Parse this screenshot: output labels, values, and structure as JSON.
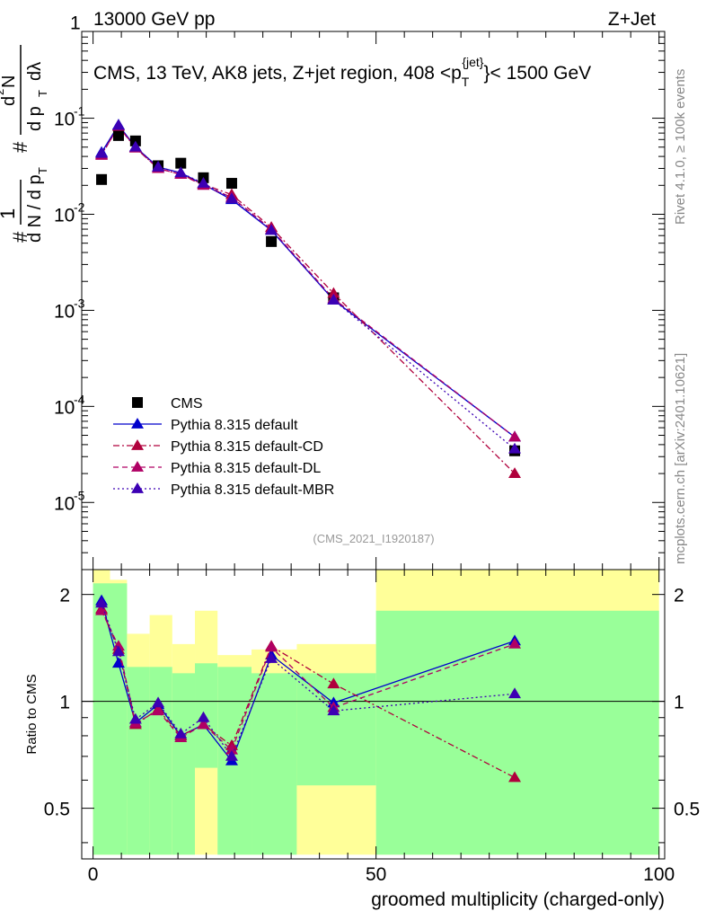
{
  "header": {
    "left": "13000 GeV pp",
    "right": "Z+Jet"
  },
  "side_labels": {
    "rivet": "Rivet 4.1.0, ≥ 100k events",
    "mcplots": "mcplots.cern.ch [arXiv:2401.10621]"
  },
  "title_parts": {
    "main": "CMS, 13 TeV, AK8 jets, Z+jet region, 408 <p",
    "sub": "T",
    "sup": "{jet}",
    "tail": "}< 1500 GeV"
  },
  "ylabel_parts": {
    "hash": "#",
    "one": "1",
    "dN": "d N / d p",
    "T": "T",
    "hash2": "#",
    "d2N": "d",
    "two": "2",
    "N": "N",
    "dpT": "d p",
    "dlambda": "dλ"
  },
  "watermark": "(CMS_2021_I1920187)",
  "colors": {
    "cms": "#000000",
    "default": "#0000cc",
    "cd": "#b0003c",
    "dl": "#b00064",
    "mbr": "#3c00b4",
    "band_inner": "#99ff99",
    "band_outer": "#ffff99"
  },
  "chart_data": [
    {
      "type": "scatter",
      "panel": "main",
      "yscale": "log",
      "xlim": [
        -2,
        101
      ],
      "ylim": [
        2e-06,
        0.8
      ],
      "ytick_labels": [
        {
          "mant": "10",
          "exp": "-5",
          "value": 1e-05
        },
        {
          "mant": "10",
          "exp": "-4",
          "value": 0.0001
        },
        {
          "mant": "10",
          "exp": "-3",
          "value": 0.001
        },
        {
          "mant": "10",
          "exp": "-2",
          "value": 0.01
        },
        {
          "mant": "10",
          "exp": "-1",
          "value": 0.1
        },
        {
          "mant": "1",
          "exp": "",
          "value": 1
        }
      ],
      "x": [
        1.5,
        4.5,
        7.5,
        11.5,
        15.5,
        19.5,
        24.5,
        31.5,
        42.5,
        74.5
      ],
      "series": [
        {
          "name": "CMS",
          "key": "cms",
          "marker": "square",
          "values": [
            0.023,
            0.066,
            0.058,
            0.032,
            0.034,
            0.024,
            0.021,
            0.0052,
            0.00135,
            3.45e-05
          ]
        },
        {
          "name": "Pythia 8.315 default",
          "key": "default",
          "marker": "triangle",
          "line": "solid",
          "values": [
            0.044,
            0.085,
            0.05,
            0.031,
            0.027,
            0.0205,
            0.0142,
            0.0068,
            0.00128,
            4.8e-05
          ]
        },
        {
          "name": "Pythia 8.315 default-CD",
          "key": "cd",
          "marker": "triangle",
          "line": "dashdot",
          "values": [
            0.042,
            0.082,
            0.049,
            0.03,
            0.026,
            0.0205,
            0.016,
            0.0073,
            0.0015,
            2e-05
          ]
        },
        {
          "name": "Pythia 8.315 default-DL",
          "key": "dl",
          "marker": "triangle",
          "line": "dash",
          "values": [
            0.041,
            0.083,
            0.049,
            0.03,
            0.026,
            0.02,
            0.015,
            0.007,
            0.00132,
            4.8e-05
          ]
        },
        {
          "name": "Pythia 8.315 default-MBR",
          "key": "mbr",
          "marker": "triangle",
          "line": "dot",
          "values": [
            0.043,
            0.084,
            0.05,
            0.031,
            0.027,
            0.021,
            0.0145,
            0.0068,
            0.00128,
            3.6e-05
          ]
        }
      ]
    },
    {
      "type": "line",
      "panel": "ratio",
      "yscale": "log",
      "ylabel": "Ratio to CMS",
      "xlabel": "groomed multiplicity (charged-only)",
      "xlim": [
        -2,
        101
      ],
      "ylim": [
        0.36,
        2.35
      ],
      "xticks": [
        0,
        50,
        100
      ],
      "xtick_labels": [
        "0",
        "50",
        "100"
      ],
      "yticks": [
        0.5,
        1,
        2
      ],
      "ytick_labels": [
        "0.5",
        "1",
        "2"
      ],
      "bin_edges": [
        0,
        3,
        6,
        10,
        14,
        18,
        22,
        28,
        36,
        50,
        100
      ],
      "band_inner": [
        [
          0.37,
          2.15
        ],
        [
          0.37,
          2.15
        ],
        [
          0.37,
          1.25
        ],
        [
          0.37,
          1.25
        ],
        [
          0.37,
          1.2
        ],
        [
          0.65,
          1.28
        ],
        [
          0.37,
          1.25
        ],
        [
          0.37,
          1.2
        ],
        [
          0.58,
          1.2
        ],
        [
          0.37,
          1.8
        ]
      ],
      "band_outer": [
        [
          0.37,
          2.35
        ],
        [
          0.37,
          2.2
        ],
        [
          0.37,
          1.55
        ],
        [
          0.37,
          1.75
        ],
        [
          0.37,
          1.45
        ],
        [
          0.37,
          1.8
        ],
        [
          0.37,
          1.35
        ],
        [
          0.37,
          1.4
        ],
        [
          0.37,
          1.45
        ],
        [
          0.37,
          2.35
        ]
      ],
      "x": [
        1.5,
        4.5,
        7.5,
        11.5,
        15.5,
        19.5,
        24.5,
        31.5,
        42.5,
        74.5
      ],
      "series": [
        {
          "name": "Pythia 8.315 default",
          "key": "default",
          "line": "solid",
          "values": [
            1.92,
            1.28,
            0.87,
            0.98,
            0.8,
            0.86,
            0.68,
            1.35,
            0.99,
            1.48
          ]
        },
        {
          "name": "Pythia 8.315 default-CD",
          "key": "cd",
          "line": "dashdot",
          "values": [
            1.82,
            1.4,
            0.86,
            0.95,
            0.8,
            0.86,
            0.75,
            1.43,
            1.12,
            0.61
          ]
        },
        {
          "name": "Pythia 8.315 default-DL",
          "key": "dl",
          "line": "dash",
          "values": [
            1.8,
            1.43,
            0.87,
            0.94,
            0.79,
            0.86,
            0.73,
            1.42,
            0.96,
            1.45
          ]
        },
        {
          "name": "Pythia 8.315 default-MBR",
          "key": "mbr",
          "line": "dot",
          "values": [
            1.89,
            1.38,
            0.89,
            0.99,
            0.81,
            0.9,
            0.7,
            1.32,
            0.94,
            1.05
          ]
        }
      ]
    }
  ],
  "legend": [
    {
      "label": "CMS",
      "key": "cms"
    },
    {
      "label": "Pythia 8.315 default",
      "key": "default"
    },
    {
      "label": "Pythia 8.315 default-CD",
      "key": "cd"
    },
    {
      "label": "Pythia 8.315 default-DL",
      "key": "dl"
    },
    {
      "label": "Pythia 8.315 default-MBR",
      "key": "mbr"
    }
  ]
}
